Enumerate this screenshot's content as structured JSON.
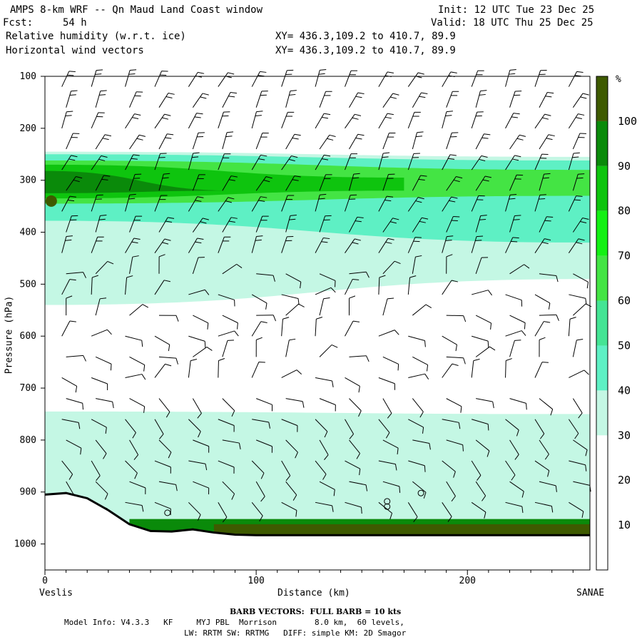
{
  "header": {
    "title": "AMPS 8-km WRF -- Qn Maud Land Coast window",
    "fcst_label": "Fcst:",
    "fcst_value": "54 h",
    "init": "Init: 12 UTC Tue 23 Dec 25",
    "valid": "Valid: 18 UTC Thu 25 Dec 25",
    "field1": "Relative humidity (w.r.t. ice)",
    "field2": "Horizontal wind vectors",
    "xy1": "XY= 436.3,109.2 to 410.7, 89.9",
    "xy2": "XY= 436.3,109.2 to 410.7, 89.9"
  },
  "footer": {
    "barb_note": "BARB VECTORS:  FULL BARB = 10 kts",
    "model_info": "Model Info: V4.3.3   KF     MYJ PBL  Morrison        8.0 km,  60 levels,",
    "physics": "LW: RRTM SW: RRTMG   DIFF: simple KM: 2D Smagor"
  },
  "colors": {
    "c30_40": "#c4f7e4",
    "c40_50": "#5ef0c4",
    "c50_60": "#44e494",
    "c60_70": "#44e444",
    "c70_80": "#14f014",
    "c80_90": "#0ec40e",
    "c90_100": "#0a8a0a",
    "c100": "#3e5a00",
    "terrain": "#000000"
  },
  "chart_data": {
    "type": "heatmap",
    "title": "",
    "xlabel": "Distance (km)",
    "ylabel": "Pressure (hPa)",
    "x_start_label": "Veslis",
    "x_end_label": "SANAE",
    "xlim": [
      0,
      258
    ],
    "ylim": [
      1050,
      100
    ],
    "y_ticks": [
      "100",
      "200",
      "300",
      "400",
      "500",
      "600",
      "700",
      "800",
      "900",
      "1000"
    ],
    "x_ticks": [
      "0",
      "100",
      "200"
    ],
    "colorbar_unit": "%",
    "colorbar_ticks": [
      "10",
      "20",
      "30",
      "40",
      "50",
      "60",
      "70",
      "80",
      "90",
      "100"
    ],
    "colorbar_levels": [
      10,
      20,
      30,
      40,
      50,
      60,
      70,
      80,
      90,
      100
    ],
    "colorbar_colors": [
      "#ffffff",
      "#ffffff",
      "#ffffff",
      "#c4f7e4",
      "#5ef0c4",
      "#44e494",
      "#44e444",
      "#14f014",
      "#0ec40e",
      "#0a8a0a",
      "#3e5a00"
    ],
    "terrain_surface_hPa": [
      [
        0,
        905
      ],
      [
        10,
        902
      ],
      [
        20,
        912
      ],
      [
        30,
        935
      ],
      [
        40,
        962
      ],
      [
        50,
        975
      ],
      [
        60,
        976
      ],
      [
        70,
        972
      ],
      [
        80,
        978
      ],
      [
        90,
        982
      ],
      [
        100,
        983
      ],
      [
        150,
        983
      ],
      [
        200,
        983
      ],
      [
        258,
        983
      ]
    ],
    "rh_layers": [
      {
        "range": "30-40",
        "x": [
          0,
          258
        ],
        "p_top": [
          245,
          255
        ],
        "p_bottom": [
          540,
          490
        ]
      },
      {
        "range": "40-50",
        "x": [
          0,
          258
        ],
        "p_top": [
          250,
          262
        ],
        "p_bottom": [
          378,
          420
        ]
      },
      {
        "range": "60-70",
        "x": [
          0,
          258
        ],
        "p_top": [
          262,
          280
        ],
        "p_bottom": [
          345,
          330
        ]
      },
      {
        "range": "80-90",
        "x": [
          0,
          170
        ],
        "p_top": [
          270,
          295
        ],
        "p_bottom": [
          335,
          320
        ]
      },
      {
        "range": "90-100",
        "x": [
          0,
          90
        ],
        "p_top": [
          282,
          320
        ],
        "p_bottom": [
          325,
          320
        ]
      },
      {
        "range": "30-40",
        "x": [
          0,
          258
        ],
        "p_top": [
          745,
          750
        ],
        "p_bottom": [
          960,
          960
        ]
      }
    ],
    "wind_barb_columns_km": [
      8,
      22,
      38,
      52,
      68,
      82,
      98,
      112,
      128,
      142,
      158,
      172,
      188,
      202,
      218,
      232,
      248
    ]
  }
}
